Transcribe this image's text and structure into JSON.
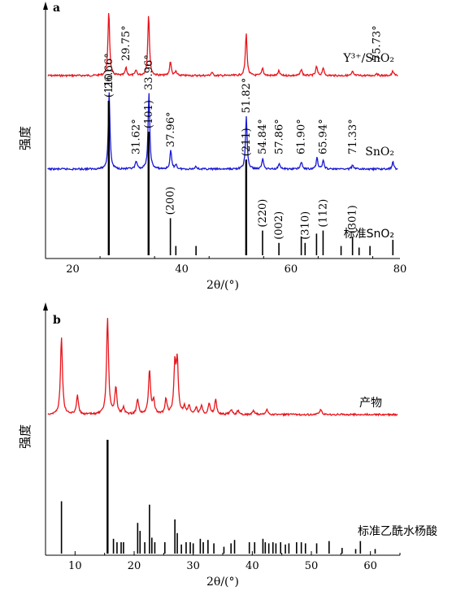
{
  "chart_data": [
    {
      "panel": "a",
      "type": "line",
      "xlabel": "2θ/(°)",
      "ylabel": "强度",
      "xlim": [
        15,
        80
      ],
      "xticks": [
        20,
        40,
        60,
        80
      ],
      "series": [
        {
          "name": "Y³⁺/SnO₂",
          "color": "#e8141b",
          "peaks": [
            {
              "x": 26.6,
              "h": 1.0
            },
            {
              "x": 29.75,
              "h": 0.12
            },
            {
              "x": 31.6,
              "h": 0.08
            },
            {
              "x": 33.9,
              "h": 0.95
            },
            {
              "x": 37.9,
              "h": 0.22
            },
            {
              "x": 38.9,
              "h": 0.06
            },
            {
              "x": 45.5,
              "h": 0.05
            },
            {
              "x": 51.8,
              "h": 0.65
            },
            {
              "x": 54.8,
              "h": 0.12
            },
            {
              "x": 57.8,
              "h": 0.07
            },
            {
              "x": 61.9,
              "h": 0.1
            },
            {
              "x": 64.7,
              "h": 0.14
            },
            {
              "x": 65.9,
              "h": 0.12
            },
            {
              "x": 71.3,
              "h": 0.06
            },
            {
              "x": 75.73,
              "h": 0.04
            },
            {
              "x": 78.7,
              "h": 0.07
            }
          ],
          "annotations": [
            {
              "x": 29.75,
              "text": "29.75°"
            },
            {
              "x": 75.73,
              "text": "75.73°"
            }
          ]
        },
        {
          "name": "SnO₂",
          "color": "#1919d4",
          "peaks": [
            {
              "x": 26.66,
              "h": 1.0
            },
            {
              "x": 31.62,
              "h": 0.1
            },
            {
              "x": 33.96,
              "h": 0.98
            },
            {
              "x": 37.96,
              "h": 0.24
            },
            {
              "x": 38.9,
              "h": 0.06
            },
            {
              "x": 42.6,
              "h": 0.04
            },
            {
              "x": 51.82,
              "h": 0.68
            },
            {
              "x": 54.84,
              "h": 0.14
            },
            {
              "x": 57.86,
              "h": 0.08
            },
            {
              "x": 61.9,
              "h": 0.1
            },
            {
              "x": 64.8,
              "h": 0.15
            },
            {
              "x": 65.94,
              "h": 0.12
            },
            {
              "x": 71.33,
              "h": 0.06
            },
            {
              "x": 78.7,
              "h": 0.09
            }
          ],
          "annotations": [
            {
              "x": 26.66,
              "text": "26.66°"
            },
            {
              "x": 31.62,
              "text": "31.62°"
            },
            {
              "x": 33.96,
              "text": "33.96°"
            },
            {
              "x": 37.96,
              "text": "37.96°"
            },
            {
              "x": 51.82,
              "text": "51.82°"
            },
            {
              "x": 54.84,
              "text": "54.84°"
            },
            {
              "x": 57.86,
              "text": "57.86°"
            },
            {
              "x": 61.9,
              "text": "61.90°"
            },
            {
              "x": 65.94,
              "text": "65.94°"
            },
            {
              "x": 71.33,
              "text": "71.33°"
            }
          ]
        }
      ],
      "reference": {
        "name": "标准SnO₂",
        "sticks": [
          {
            "x": 26.6,
            "h": 1.0,
            "hkl": "(110)"
          },
          {
            "x": 33.9,
            "h": 0.8,
            "hkl": "(101)"
          },
          {
            "x": 37.9,
            "h": 0.24,
            "hkl": "(200)"
          },
          {
            "x": 38.9,
            "h": 0.06,
            "hkl": ""
          },
          {
            "x": 42.6,
            "h": 0.06,
            "hkl": ""
          },
          {
            "x": 51.8,
            "h": 0.62,
            "hkl": "(211)"
          },
          {
            "x": 54.8,
            "h": 0.16,
            "hkl": "(220)"
          },
          {
            "x": 57.8,
            "h": 0.08,
            "hkl": "(002)"
          },
          {
            "x": 61.9,
            "h": 0.12,
            "hkl": ""
          },
          {
            "x": 62.6,
            "h": 0.08,
            "hkl": "(310)"
          },
          {
            "x": 64.7,
            "h": 0.14,
            "hkl": ""
          },
          {
            "x": 65.9,
            "h": 0.16,
            "hkl": "(112)"
          },
          {
            "x": 69.2,
            "h": 0.06,
            "hkl": ""
          },
          {
            "x": 71.3,
            "h": 0.12,
            "hkl": "(301)"
          },
          {
            "x": 72.5,
            "h": 0.05,
            "hkl": ""
          },
          {
            "x": 74.5,
            "h": 0.06,
            "hkl": ""
          },
          {
            "x": 78.7,
            "h": 0.1,
            "hkl": ""
          }
        ]
      }
    },
    {
      "panel": "b",
      "type": "line",
      "xlabel": "2θ/(°)",
      "ylabel": "强度",
      "xlim": [
        5,
        65
      ],
      "xticks": [
        10,
        20,
        30,
        40,
        50,
        60
      ],
      "series": [
        {
          "name": "产物",
          "color": "#e8141b",
          "peaks": [
            {
              "x": 7.7,
              "h": 0.8
            },
            {
              "x": 10.4,
              "h": 0.2
            },
            {
              "x": 15.5,
              "h": 1.0
            },
            {
              "x": 16.9,
              "h": 0.28
            },
            {
              "x": 18.2,
              "h": 0.07
            },
            {
              "x": 20.6,
              "h": 0.16
            },
            {
              "x": 22.6,
              "h": 0.46
            },
            {
              "x": 23.3,
              "h": 0.14
            },
            {
              "x": 25.4,
              "h": 0.16
            },
            {
              "x": 26.9,
              "h": 0.5
            },
            {
              "x": 27.3,
              "h": 0.53
            },
            {
              "x": 28.5,
              "h": 0.08
            },
            {
              "x": 29.3,
              "h": 0.09
            },
            {
              "x": 30.5,
              "h": 0.07
            },
            {
              "x": 31.4,
              "h": 0.09
            },
            {
              "x": 32.7,
              "h": 0.11
            },
            {
              "x": 33.8,
              "h": 0.15
            },
            {
              "x": 36.4,
              "h": 0.05
            },
            {
              "x": 37.6,
              "h": 0.04
            },
            {
              "x": 40.2,
              "h": 0.04
            },
            {
              "x": 42.5,
              "h": 0.05
            },
            {
              "x": 51.6,
              "h": 0.05
            }
          ]
        }
      ],
      "reference": {
        "name": "标准乙酰水杨酸",
        "sticks": [
          {
            "x": 7.7,
            "h": 0.46
          },
          {
            "x": 15.5,
            "h": 1.0
          },
          {
            "x": 16.5,
            "h": 0.13
          },
          {
            "x": 17.1,
            "h": 0.1
          },
          {
            "x": 17.8,
            "h": 0.1
          },
          {
            "x": 18.2,
            "h": 0.1
          },
          {
            "x": 20.6,
            "h": 0.27
          },
          {
            "x": 21.0,
            "h": 0.2
          },
          {
            "x": 21.8,
            "h": 0.1
          },
          {
            "x": 22.6,
            "h": 0.43
          },
          {
            "x": 23.0,
            "h": 0.14
          },
          {
            "x": 23.5,
            "h": 0.1
          },
          {
            "x": 25.2,
            "h": 0.1
          },
          {
            "x": 26.9,
            "h": 0.3
          },
          {
            "x": 27.3,
            "h": 0.18
          },
          {
            "x": 28.0,
            "h": 0.08
          },
          {
            "x": 28.8,
            "h": 0.1
          },
          {
            "x": 29.5,
            "h": 0.1
          },
          {
            "x": 30.0,
            "h": 0.09
          },
          {
            "x": 31.2,
            "h": 0.13
          },
          {
            "x": 31.7,
            "h": 0.1
          },
          {
            "x": 32.5,
            "h": 0.12
          },
          {
            "x": 33.5,
            "h": 0.09
          },
          {
            "x": 35.2,
            "h": 0.06
          },
          {
            "x": 36.4,
            "h": 0.09
          },
          {
            "x": 37.0,
            "h": 0.12
          },
          {
            "x": 39.5,
            "h": 0.1
          },
          {
            "x": 40.4,
            "h": 0.1
          },
          {
            "x": 41.8,
            "h": 0.13
          },
          {
            "x": 42.2,
            "h": 0.1
          },
          {
            "x": 42.8,
            "h": 0.09
          },
          {
            "x": 43.5,
            "h": 0.1
          },
          {
            "x": 44.0,
            "h": 0.09
          },
          {
            "x": 44.8,
            "h": 0.1
          },
          {
            "x": 45.6,
            "h": 0.08
          },
          {
            "x": 46.2,
            "h": 0.09
          },
          {
            "x": 47.5,
            "h": 0.1
          },
          {
            "x": 48.3,
            "h": 0.1
          },
          {
            "x": 49.0,
            "h": 0.09
          },
          {
            "x": 50.9,
            "h": 0.09
          },
          {
            "x": 53.0,
            "h": 0.11
          },
          {
            "x": 55.2,
            "h": 0.05
          },
          {
            "x": 57.5,
            "h": 0.04
          },
          {
            "x": 58.3,
            "h": 0.11
          },
          {
            "x": 60.8,
            "h": 0.04
          }
        ]
      }
    }
  ]
}
